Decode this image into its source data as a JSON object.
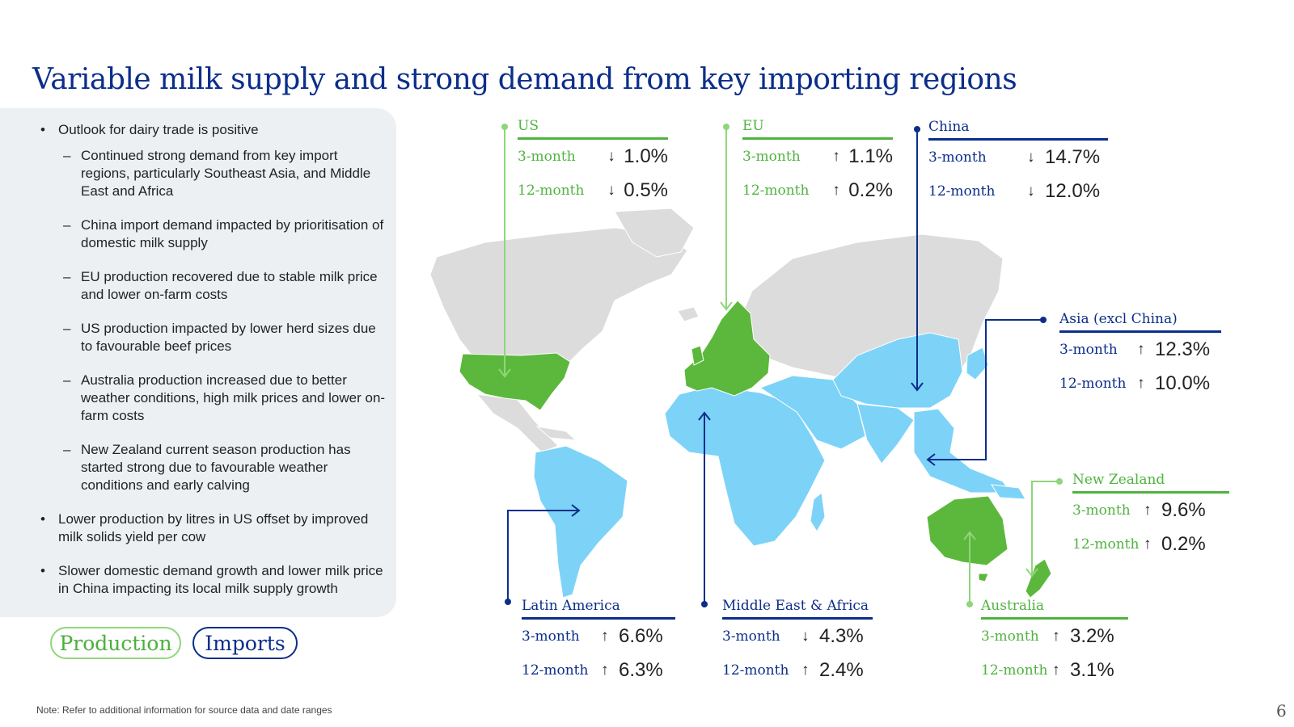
{
  "title": "Variable milk supply and strong demand from key importing regions",
  "bullets": [
    {
      "level": 1,
      "text": "Outlook for dairy trade is positive"
    },
    {
      "level": 2,
      "text": "Continued strong demand from key import regions, particularly Southeast Asia, and Middle East and Africa"
    },
    {
      "level": 2,
      "text": "China import demand impacted by prioritisation of domestic milk supply"
    },
    {
      "level": 2,
      "text": "EU production recovered due to stable milk price and lower on-farm costs"
    },
    {
      "level": 2,
      "text": "US production impacted by lower herd sizes due to favourable beef prices"
    },
    {
      "level": 2,
      "text": "Australia production increased due to better weather conditions, high milk prices and lower on-farm costs"
    },
    {
      "level": 2,
      "text": "New Zealand current season production has started strong due to favourable weather conditions and early calving"
    },
    {
      "level": 1,
      "text": "Lower production by litres in US offset by improved milk solids yield per cow"
    },
    {
      "level": 1,
      "text": "Slower domestic demand growth and lower milk price in China impacting its local milk supply growth"
    }
  ],
  "legend": {
    "production": "Production",
    "imports": "Imports"
  },
  "colors": {
    "production": "#4fb33f",
    "imports": "#0b2e8a",
    "import_fill": "#7dd3f7",
    "production_fill": "#5cb83c",
    "land": "#dcdcdc"
  },
  "regions": {
    "us": {
      "name": "US",
      "type": "production",
      "m3_label": "3-month",
      "m3_dir": "down",
      "m3_value": "1.0%",
      "m12_label": "12-month",
      "m12_dir": "down",
      "m12_value": "0.5%"
    },
    "eu": {
      "name": "EU",
      "type": "production",
      "m3_label": "3-month",
      "m3_dir": "up",
      "m3_value": "1.1%",
      "m12_label": "12-month",
      "m12_dir": "up",
      "m12_value": "0.2%"
    },
    "china": {
      "name": "China",
      "type": "imports",
      "m3_label": "3-month",
      "m3_dir": "down",
      "m3_value": "14.7%",
      "m12_label": "12-month",
      "m12_dir": "down",
      "m12_value": "12.0%"
    },
    "asia": {
      "name": "Asia (excl China)",
      "type": "imports",
      "m3_label": "3-month",
      "m3_dir": "up",
      "m3_value": "12.3%",
      "m12_label": "12-month",
      "m12_dir": "up",
      "m12_value": "10.0%"
    },
    "nz": {
      "name": "New Zealand",
      "type": "production",
      "m3_label": "3-month",
      "m3_dir": "up",
      "m3_value": "9.6%",
      "m12_label": "12-month",
      "m12_dir": "up",
      "m12_value": "0.2%"
    },
    "latam": {
      "name": "Latin America",
      "type": "imports",
      "m3_label": "3-month",
      "m3_dir": "up",
      "m3_value": "6.6%",
      "m12_label": "12-month",
      "m12_dir": "up",
      "m12_value": "6.3%"
    },
    "mea": {
      "name": "Middle East & Africa",
      "type": "imports",
      "m3_label": "3-month",
      "m3_dir": "down",
      "m3_value": "4.3%",
      "m12_label": "12-month",
      "m12_dir": "up",
      "m12_value": "2.4%"
    },
    "au": {
      "name": "Australia",
      "type": "production",
      "m3_label": "3-month",
      "m3_dir": "up",
      "m3_value": "3.2%",
      "m12_label": "12-month",
      "m12_dir": "up",
      "m12_value": "3.1%"
    }
  },
  "note": "Note: Refer to additional information for source data and date ranges",
  "page_number": "6"
}
